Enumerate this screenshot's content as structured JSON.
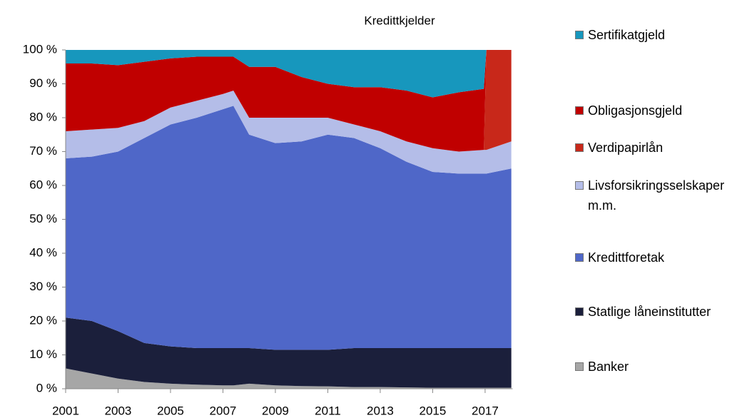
{
  "chart_data": {
    "type": "stacked_area",
    "title": "Kredittkjelder",
    "x": [
      2001,
      2002,
      2003,
      2004,
      2005,
      2006,
      2007,
      2007.4,
      2008,
      2009,
      2010,
      2011,
      2012,
      2013,
      2014,
      2015,
      2016,
      2016.95,
      2017.05,
      2018
    ],
    "xlim": [
      2001,
      2018.05
    ],
    "xticks": [
      2001,
      2003,
      2005,
      2007,
      2009,
      2011,
      2013,
      2015,
      2017
    ],
    "ylim": [
      0,
      100
    ],
    "yticks": [
      {
        "value": 0,
        "label": "0 %"
      },
      {
        "value": 10,
        "label": "10 %"
      },
      {
        "value": 20,
        "label": "20 %"
      },
      {
        "value": 30,
        "label": "30 %"
      },
      {
        "value": 40,
        "label": "40 %"
      },
      {
        "value": 50,
        "label": "50 %"
      },
      {
        "value": 60,
        "label": "60 %"
      },
      {
        "value": 70,
        "label": "70 %"
      },
      {
        "value": 80,
        "label": "80 %"
      },
      {
        "value": 90,
        "label": "90 %"
      },
      {
        "value": 100,
        "label": "100 %"
      }
    ],
    "grid": false,
    "legend": "right",
    "series": [
      {
        "name": "Banker",
        "color": "#a6a6a6",
        "values": [
          6,
          4.5,
          3,
          2,
          1.5,
          1.2,
          1,
          1,
          1.5,
          1,
          0.8,
          0.7,
          0.5,
          0.5,
          0.4,
          0.3,
          0.3,
          0.3,
          0.3,
          0.3
        ]
      },
      {
        "name": "Statlige låneinstitutter",
        "color": "#1b1f3b",
        "values": [
          15,
          15.5,
          14,
          11.5,
          11,
          10.8,
          11,
          11,
          10.5,
          10.5,
          10.7,
          10.8,
          11.5,
          11.5,
          11.6,
          11.7,
          11.7,
          11.7,
          11.7,
          11.7
        ]
      },
      {
        "name": "Kredittforetak",
        "color": "#4f67c8",
        "values": [
          47,
          48.5,
          53,
          60.5,
          65.5,
          68,
          70.5,
          71.5,
          63,
          61,
          61.5,
          63.5,
          62,
          59,
          55,
          52,
          51.5,
          51.5,
          51.5,
          53
        ]
      },
      {
        "name": "Livsforsikringsselskaper m.m.",
        "color": "#b4bde8",
        "values": [
          8,
          8,
          7,
          5,
          5,
          5,
          4.5,
          4.5,
          5,
          7.5,
          7,
          5,
          4,
          5,
          6,
          7,
          6.5,
          7,
          7,
          8
        ]
      },
      {
        "name": "Verdipapirlån",
        "color": "#c8281a",
        "values": [
          0,
          0,
          0,
          0,
          0,
          0,
          0,
          0,
          0,
          0,
          0,
          0,
          0,
          0,
          0,
          0,
          0,
          0,
          29.5,
          27
        ]
      },
      {
        "name": "Obligasjonsgjeld",
        "color": "#c00000",
        "values": [
          20,
          19.5,
          18.5,
          17.5,
          14.5,
          13,
          11,
          10,
          15,
          15,
          12,
          10,
          11,
          13,
          15,
          15,
          17.5,
          18,
          0,
          0
        ]
      },
      {
        "name": "Sertifikatgjeld",
        "color": "#1797bd",
        "values": [
          4,
          4,
          4.5,
          3.5,
          2.5,
          2,
          2,
          2,
          5,
          5,
          8,
          10,
          11,
          11,
          12,
          14,
          12.5,
          11.5,
          0,
          0
        ]
      }
    ]
  }
}
